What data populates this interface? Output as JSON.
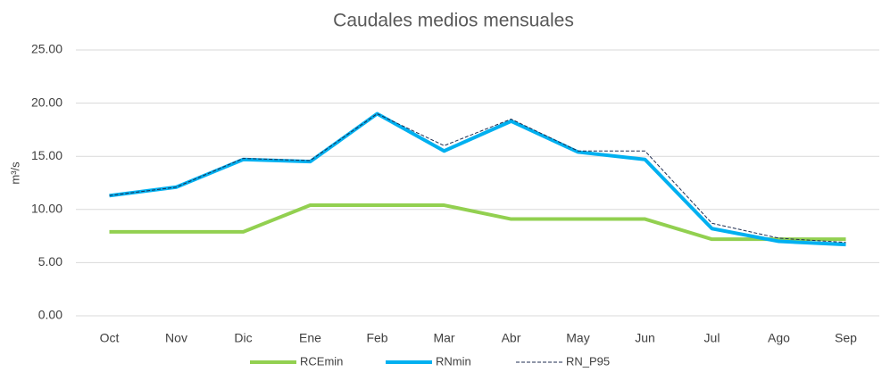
{
  "chart_data": {
    "type": "line",
    "title": "Caudales medios mensuales",
    "y_label": "m³/s",
    "categories": [
      "Oct",
      "Nov",
      "Dic",
      "Ene",
      "Feb",
      "Mar",
      "Abr",
      "May",
      "Jun",
      "Jul",
      "Ago",
      "Sep"
    ],
    "series": [
      {
        "name": "RCEmin",
        "color": "#92d050",
        "width": 4,
        "dash": false,
        "values": [
          7.9,
          7.9,
          7.9,
          10.4,
          10.4,
          10.4,
          9.1,
          9.1,
          9.1,
          7.2,
          7.2,
          7.2
        ]
      },
      {
        "name": "RNmin",
        "color": "#00b0f0",
        "width": 4,
        "dash": false,
        "values": [
          11.3,
          12.1,
          14.7,
          14.5,
          19.0,
          15.5,
          18.3,
          15.4,
          14.7,
          8.2,
          7.0,
          6.7
        ]
      },
      {
        "name": "RN_P95",
        "color": "#1f2d50",
        "width": 1,
        "dash": true,
        "values": [
          11.3,
          12.1,
          14.8,
          14.6,
          19.0,
          16.0,
          18.5,
          15.5,
          15.5,
          8.7,
          7.3,
          6.9
        ]
      }
    ],
    "ylim": [
      0,
      25
    ],
    "yticks": [
      {
        "value": 0,
        "label": "0.00"
      },
      {
        "value": 5,
        "label": "5.00"
      },
      {
        "value": 10,
        "label": "10.00"
      },
      {
        "value": 15,
        "label": "15.00"
      },
      {
        "value": 20,
        "label": "20.00"
      },
      {
        "value": 25,
        "label": "25.00"
      }
    ],
    "grid": true,
    "legend": "bottom"
  }
}
